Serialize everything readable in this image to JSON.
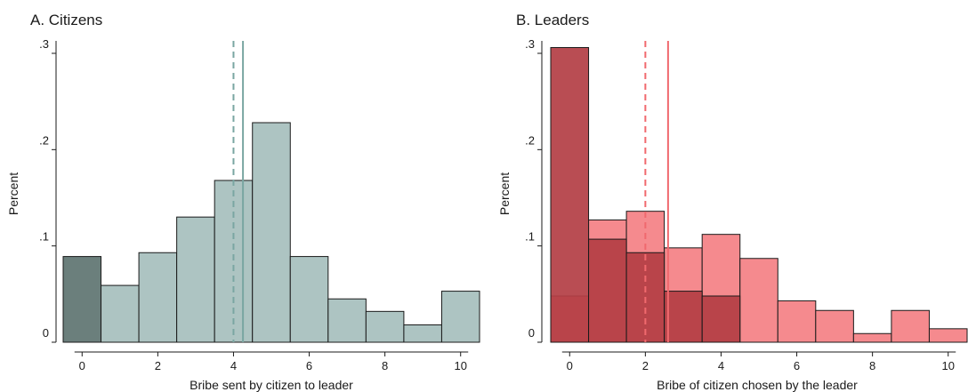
{
  "chart_data": [
    {
      "type": "bar",
      "title": "A. Citizens",
      "xlabel": "Bribe sent by citizen to leader",
      "ylabel": "Percent",
      "x_ticks": [
        "0",
        "2",
        "4",
        "6",
        "8",
        "10"
      ],
      "y_ticks": [
        "0",
        ".1",
        ".2",
        ".3"
      ],
      "xlim": [
        -0.5,
        10.5
      ],
      "ylim": [
        0,
        0.3
      ],
      "grid": false,
      "bin_width": 1,
      "series": [
        {
          "bins": [
            0,
            1,
            2,
            3,
            4,
            5,
            6,
            7,
            8,
            9,
            10
          ],
          "values": [
            0.089,
            0.059,
            0.093,
            0.13,
            0.168,
            0.228,
            0.089,
            0.045,
            0.032,
            0.018,
            0.053
          ],
          "highlight_bins": [
            0
          ],
          "color": "#adc4c2",
          "highlight_color": "#6b7f7c"
        }
      ],
      "reference_lines": [
        {
          "x": 4.0,
          "style": "dashed",
          "color": "#7aa6a2"
        },
        {
          "x": 4.25,
          "style": "solid",
          "color": "#7aa6a2"
        }
      ]
    },
    {
      "type": "bar",
      "title": "B. Leaders",
      "xlabel": "Bribe of citizen chosen by the leader",
      "ylabel": "Percent",
      "x_ticks": [
        "0",
        "2",
        "4",
        "6",
        "8",
        "10"
      ],
      "y_ticks": [
        "0",
        ".1",
        ".2",
        ".3"
      ],
      "xlim": [
        -0.5,
        10.5
      ],
      "ylim": [
        0,
        0.3
      ],
      "grid": false,
      "bin_width": 1,
      "series": [
        {
          "bins": [
            0,
            1,
            2,
            3,
            4,
            5,
            6,
            7,
            8,
            9,
            10
          ],
          "values": [
            0.048,
            0.127,
            0.136,
            0.098,
            0.112,
            0.087,
            0.043,
            0.033,
            0.009,
            0.033,
            0.014
          ],
          "color": "#f58a8e"
        },
        {
          "bins": [
            0,
            1,
            2,
            3,
            4
          ],
          "values": [
            0.306,
            0.107,
            0.093,
            0.053,
            0.048
          ],
          "color": "#b33e44"
        }
      ],
      "reference_lines": [
        {
          "x": 2.0,
          "style": "dashed",
          "color": "#f0696e"
        },
        {
          "x": 2.6,
          "style": "solid",
          "color": "#f0696e"
        }
      ]
    }
  ]
}
